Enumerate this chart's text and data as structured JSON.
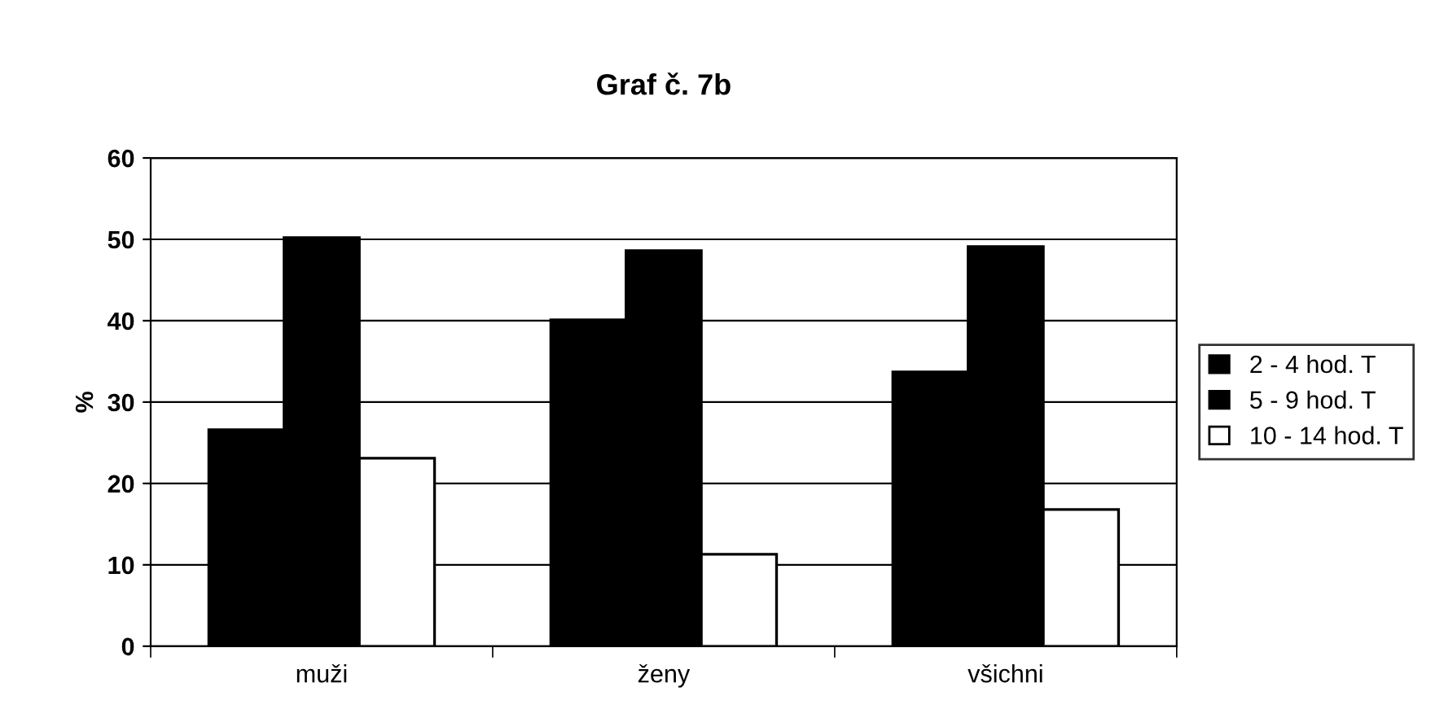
{
  "chart_data": {
    "type": "bar",
    "title": "Graf č. 7b",
    "ylabel": "%",
    "categories": [
      "muži",
      "ženy",
      "všichni"
    ],
    "series": [
      {
        "name": "2 - 4 hod. T",
        "color": "#000000",
        "values": [
          26.6,
          40.1,
          33.7
        ]
      },
      {
        "name": "5 - 9 hod. T",
        "color": "#000000",
        "values": [
          50.2,
          48.6,
          49.1
        ]
      },
      {
        "name": "10 - 14 hod. T",
        "color": "#ffffff",
        "values": [
          23.1,
          11.3,
          16.8
        ]
      }
    ],
    "ylim": [
      0,
      60
    ],
    "yticks": [
      0,
      10,
      20,
      30,
      40,
      50,
      60
    ],
    "grid": "y",
    "legend": "right"
  }
}
